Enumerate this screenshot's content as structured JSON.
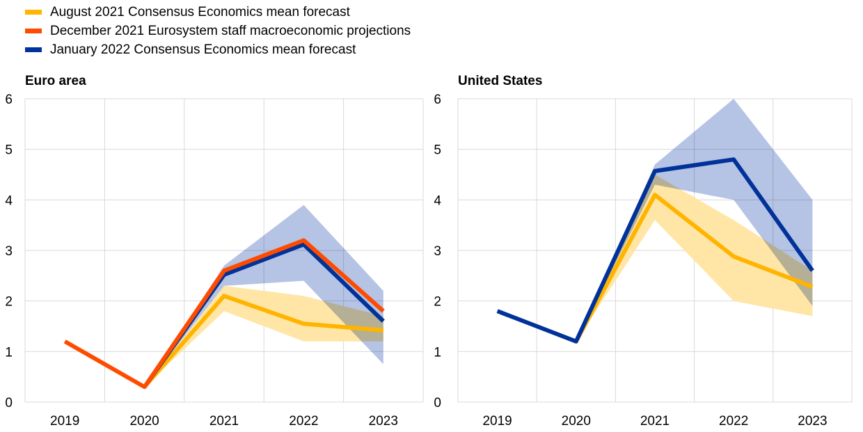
{
  "legend": [
    {
      "label": "August 2021 Consensus Economics mean forecast",
      "color": "#FFB400"
    },
    {
      "label": "December 2021 Eurosystem staff macroeconomic projections",
      "color": "#FF4B00"
    },
    {
      "label": "January 2022 Consensus Economics mean forecast",
      "color": "#003299"
    }
  ],
  "band_colors": {
    "august": "#FFE6A6",
    "january": "#A8B9E0"
  },
  "chart_data": [
    {
      "type": "line",
      "title": "Euro area",
      "categories": [
        "2019",
        "2020",
        "2021",
        "2022",
        "2023"
      ],
      "ylim": [
        0,
        6
      ],
      "yticks": [
        0,
        1,
        2,
        3,
        4,
        5,
        6
      ],
      "grid": true,
      "bands": [
        {
          "color": "#FFE6A6",
          "x": [
            "2020",
            "2021",
            "2022",
            "2023"
          ],
          "lower": [
            0.3,
            1.8,
            1.2,
            1.2
          ],
          "upper": [
            0.3,
            2.3,
            2.1,
            1.7
          ]
        },
        {
          "color": "#A8B9E0",
          "x": [
            "2020",
            "2021",
            "2022",
            "2023"
          ],
          "lower": [
            0.3,
            2.3,
            2.4,
            0.75
          ],
          "upper": [
            0.3,
            2.7,
            3.9,
            2.2
          ]
        }
      ],
      "series": [
        {
          "color": "#FFB400",
          "x": [
            "2020",
            "2021",
            "2022",
            "2023"
          ],
          "values": [
            0.3,
            2.1,
            1.55,
            1.42
          ]
        },
        {
          "color": "#003299",
          "x": [
            "2020",
            "2021",
            "2022",
            "2023"
          ],
          "values": [
            0.3,
            2.52,
            3.12,
            1.6
          ]
        },
        {
          "color": "#FF4B00",
          "x": [
            "2019",
            "2020",
            "2021",
            "2022",
            "2023"
          ],
          "values": [
            1.2,
            0.3,
            2.6,
            3.2,
            1.8
          ]
        }
      ]
    },
    {
      "type": "line",
      "title": "United States",
      "categories": [
        "2019",
        "2020",
        "2021",
        "2022",
        "2023"
      ],
      "ylim": [
        0,
        6
      ],
      "yticks": [
        0,
        1,
        2,
        3,
        4,
        5,
        6
      ],
      "grid": true,
      "bands": [
        {
          "color": "#FFE6A6",
          "x": [
            "2020",
            "2021",
            "2022",
            "2023"
          ],
          "lower": [
            1.2,
            3.6,
            2.0,
            1.7
          ],
          "upper": [
            1.2,
            4.5,
            3.6,
            2.6
          ]
        },
        {
          "color": "#A8B9E0",
          "x": [
            "2020",
            "2021",
            "2022",
            "2023"
          ],
          "lower": [
            1.2,
            4.3,
            4.0,
            1.9
          ],
          "upper": [
            1.2,
            4.7,
            6.0,
            4.0
          ]
        }
      ],
      "series": [
        {
          "color": "#FFB400",
          "x": [
            "2020",
            "2021",
            "2022",
            "2023"
          ],
          "values": [
            1.2,
            4.1,
            2.88,
            2.28
          ]
        },
        {
          "color": "#003299",
          "x": [
            "2019",
            "2020",
            "2021",
            "2022",
            "2023"
          ],
          "values": [
            1.8,
            1.2,
            4.57,
            4.8,
            2.6
          ]
        }
      ]
    }
  ]
}
